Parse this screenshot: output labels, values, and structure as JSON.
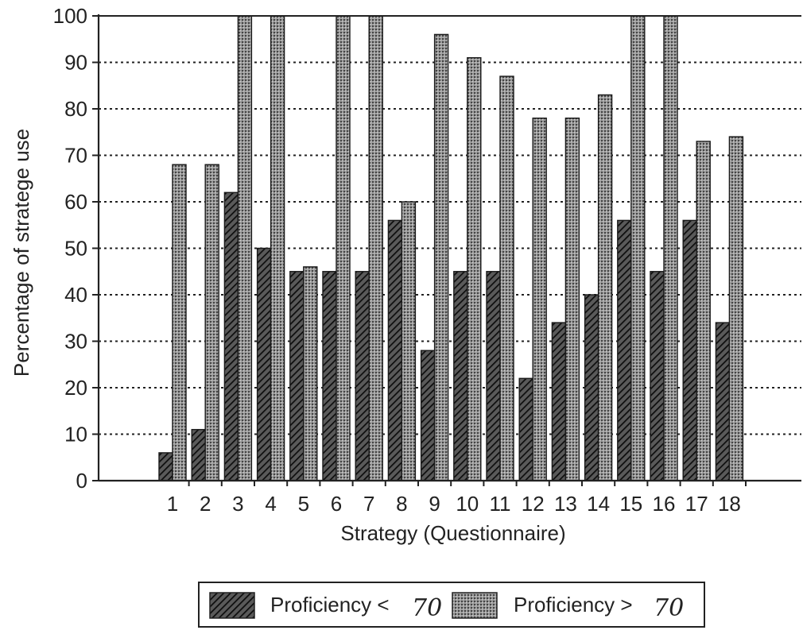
{
  "chart_data": {
    "type": "bar",
    "title": "",
    "xlabel": "Strategy (Questionnaire)",
    "ylabel": "Percentage of stratege use",
    "ylim": [
      0,
      100
    ],
    "yticks": [
      "0",
      "10",
      "20",
      "30",
      "40",
      "50",
      "60",
      "70",
      "80",
      "90",
      "100"
    ],
    "categories": [
      "1",
      "2",
      "3",
      "4",
      "5",
      "6",
      "7",
      "8",
      "9",
      "10",
      "11",
      "12",
      "13",
      "14",
      "15",
      "16",
      "17",
      "18"
    ],
    "grid": "horizontal dotted",
    "legend_position": "bottom",
    "series": [
      {
        "name": "Proficiency < 70",
        "label": "Proficiency <",
        "threshold": "70",
        "pattern": "dark diagonal hatch",
        "color": "#2a2a2a",
        "values": [
          6,
          11,
          62,
          50,
          45,
          45,
          45,
          56,
          28,
          45,
          45,
          22,
          34,
          40,
          56,
          45,
          56,
          34
        ]
      },
      {
        "name": "Proficiency > 70",
        "label": "Proficiency >",
        "threshold": "70",
        "pattern": "grey stipple",
        "color": "#8a8a8a",
        "values": [
          68,
          68,
          100,
          100,
          46,
          100,
          100,
          60,
          96,
          91,
          87,
          78,
          78,
          83,
          100,
          100,
          73,
          74
        ]
      }
    ]
  }
}
